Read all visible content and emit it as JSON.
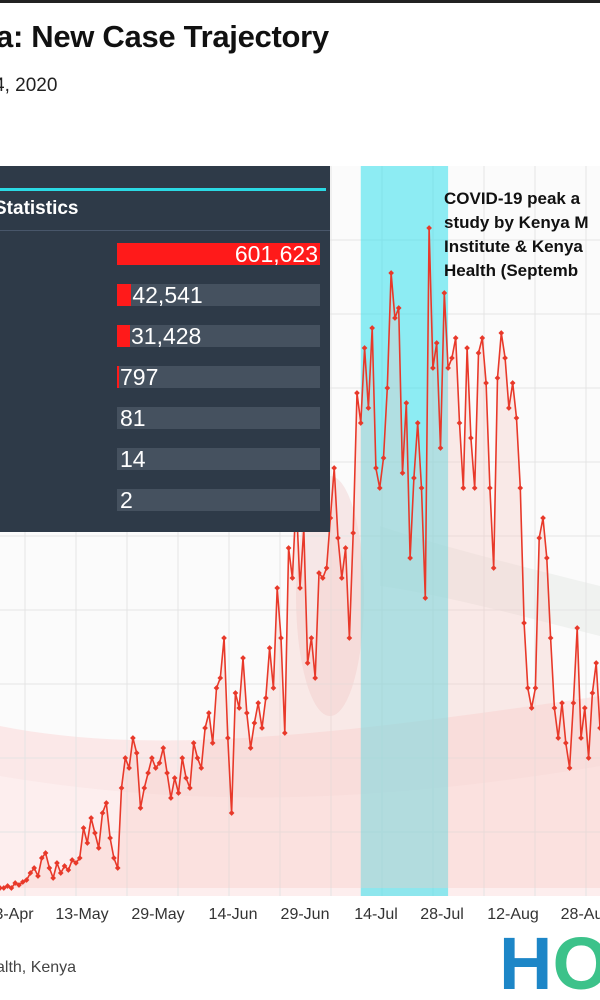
{
  "header": {
    "title": "a: New Case Trajectory",
    "subtitle": "4, 2020"
  },
  "stats": {
    "header": "Statistics",
    "rows": [
      {
        "value": 601623,
        "label": "601,623"
      },
      {
        "value": 42541,
        "label": "42,541"
      },
      {
        "value": 31428,
        "label": "31,428"
      },
      {
        "value": 797,
        "label": "797"
      },
      {
        "value": 81,
        "label": "81"
      },
      {
        "value": 14,
        "label": "14"
      },
      {
        "value": 2,
        "label": "2"
      }
    ],
    "bar_color": "#ff1a1a"
  },
  "annotation": {
    "lines": [
      "COVID-19 peak a",
      "study by Kenya M",
      "Institute & Kenya",
      "Health (Septemb"
    ],
    "highlight_color": "#33e0ec"
  },
  "source": {
    "text": "alth, Kenya"
  },
  "logo": {
    "text": "HO",
    "colors": [
      "#1d86c7",
      "#3cc28a"
    ]
  },
  "chart_data": {
    "type": "line",
    "series_color": "#e8392a",
    "x_tick_labels": [
      "3-Apr",
      "13-May",
      "29-May",
      "14-Jun",
      "29-Jun",
      "14-Jul",
      "28-Jul",
      "12-Aug",
      "28-Au"
    ],
    "highlight_range": [
      "23-Jul",
      "9-Aug"
    ],
    "y": [
      0,
      0,
      2,
      0,
      5,
      3,
      6,
      8,
      15,
      20,
      12,
      30,
      35,
      20,
      10,
      25,
      15,
      22,
      18,
      28,
      25,
      30,
      60,
      45,
      70,
      55,
      40,
      75,
      85,
      50,
      30,
      20,
      100,
      130,
      120,
      150,
      135,
      80,
      100,
      115,
      130,
      120,
      125,
      140,
      115,
      90,
      110,
      95,
      130,
      110,
      100,
      145,
      130,
      120,
      160,
      175,
      145,
      200,
      210,
      250,
      150,
      75,
      195,
      180,
      230,
      175,
      140,
      165,
      185,
      160,
      190,
      240,
      200,
      300,
      250,
      155,
      340,
      310,
      390,
      300,
      360,
      225,
      250,
      210,
      315,
      310,
      320,
      370,
      420,
      350,
      310,
      340,
      250,
      355,
      495,
      465,
      540,
      480,
      560,
      420,
      400,
      430,
      500,
      615,
      570,
      580,
      415,
      485,
      330,
      410,
      465,
      400,
      290,
      660,
      520,
      545,
      440,
      595,
      520,
      530,
      550,
      465,
      400,
      540,
      450,
      400,
      535,
      550,
      505,
      400,
      320,
      510,
      555,
      530,
      480,
      505,
      470,
      400,
      265,
      200,
      180,
      200,
      350,
      370,
      330,
      250,
      180,
      150,
      185,
      145,
      120,
      185,
      260,
      150,
      180,
      130,
      195,
      225,
      160
    ]
  }
}
